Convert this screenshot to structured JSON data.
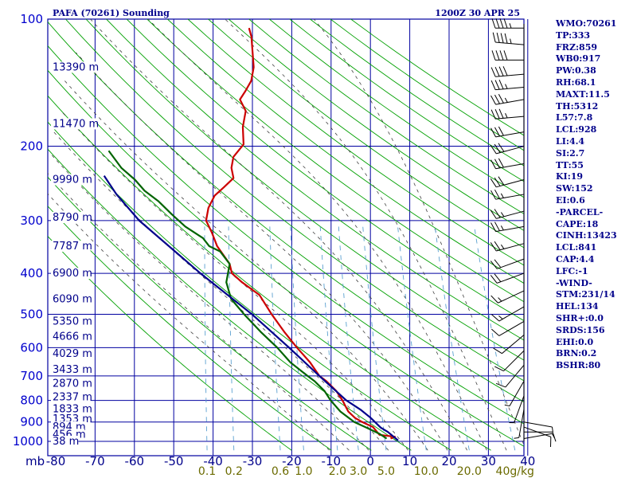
{
  "header": {
    "station": "PAFA (70261) Sounding",
    "time": "1200Z 30 APR 25"
  },
  "colors": {
    "axes": "#0000a0",
    "dry_adiabat": "#00a000",
    "moist_adiabat": "#404040",
    "mixing_ratio": "#5aa0d0",
    "temperature": "#cc0000",
    "dewpoint": "#006400",
    "parcel": "#00008b",
    "wind": "#000000",
    "label": "#00008b"
  },
  "chart_data": {
    "type": "skew-t log-p",
    "pressure_axis": {
      "unit_label": "mb",
      "ticks": [
        "100",
        "200",
        "300",
        "400",
        "500",
        "600",
        "700",
        "800",
        "900",
        "1000"
      ],
      "scale": "log",
      "range": [
        100,
        1050
      ]
    },
    "temperature_axis": {
      "ticks": [
        "-80",
        "-70",
        "-60",
        "-50",
        "-40",
        "-30",
        "-20",
        "-10",
        "0",
        "10",
        "20",
        "30",
        "40"
      ],
      "range": [
        -80,
        40
      ],
      "skewed": true
    },
    "height_labels": [
      {
        "p": 130,
        "label": "13390 m"
      },
      {
        "p": 177,
        "label": "11470 m"
      },
      {
        "p": 240,
        "label": "9990 m"
      },
      {
        "p": 295,
        "label": "8790 m"
      },
      {
        "p": 345,
        "label": "7787 m"
      },
      {
        "p": 400,
        "label": "6900 m"
      },
      {
        "p": 460,
        "label": "6090 m"
      },
      {
        "p": 520,
        "label": "5350 m"
      },
      {
        "p": 565,
        "label": "4666 m"
      },
      {
        "p": 620,
        "label": "4029 m"
      },
      {
        "p": 676,
        "label": "3433 m"
      },
      {
        "p": 730,
        "label": "2870 m"
      },
      {
        "p": 785,
        "label": "2337 m"
      },
      {
        "p": 838,
        "label": "1833 m"
      },
      {
        "p": 885,
        "label": "1353 m"
      },
      {
        "p": 925,
        "label": "894 m"
      },
      {
        "p": 963,
        "label": "456 m"
      },
      {
        "p": 1000,
        "label": "38 m"
      }
    ],
    "mixing_ratio_labels": [
      "0.1",
      "0.2",
      "0.6",
      "1.0",
      "2.0",
      "3.0",
      "5.0",
      "10.0",
      "20.0",
      "40g/kg"
    ],
    "series": [
      {
        "key": "temperature",
        "points": [
          [
            985,
            5
          ],
          [
            975,
            6
          ],
          [
            965,
            2
          ],
          [
            925,
            0
          ],
          [
            900,
            -3
          ],
          [
            880,
            -5
          ],
          [
            850,
            -7
          ],
          [
            800,
            -9
          ],
          [
            760,
            -11
          ],
          [
            720,
            -14
          ],
          [
            700,
            -16
          ],
          [
            650,
            -19
          ],
          [
            600,
            -23
          ],
          [
            550,
            -27
          ],
          [
            500,
            -31
          ],
          [
            450,
            -35
          ],
          [
            420,
            -40
          ],
          [
            400,
            -43
          ],
          [
            380,
            -44
          ],
          [
            345,
            -48
          ],
          [
            320,
            -50
          ],
          [
            300,
            -52
          ],
          [
            280,
            -52
          ],
          [
            262,
            -51
          ],
          [
            250,
            -49
          ],
          [
            238,
            -47
          ],
          [
            225,
            -48
          ],
          [
            212,
            -48
          ],
          [
            198,
            -46
          ],
          [
            180,
            -47
          ],
          [
            165,
            -47
          ],
          [
            155,
            -49
          ],
          [
            148,
            -48
          ],
          [
            140,
            -47
          ],
          [
            130,
            -47
          ],
          [
            110,
            -49
          ],
          [
            105,
            -50
          ]
        ]
      },
      {
        "key": "dewpoint",
        "points": [
          [
            985,
            4
          ],
          [
            960,
            2
          ],
          [
            925,
            -2
          ],
          [
            900,
            -5
          ],
          [
            850,
            -9
          ],
          [
            800,
            -12
          ],
          [
            760,
            -14
          ],
          [
            720,
            -17
          ],
          [
            700,
            -19
          ],
          [
            650,
            -24
          ],
          [
            600,
            -28
          ],
          [
            550,
            -33
          ],
          [
            500,
            -38
          ],
          [
            460,
            -42
          ],
          [
            420,
            -44
          ],
          [
            380,
            -44
          ],
          [
            355,
            -47
          ],
          [
            345,
            -50
          ],
          [
            330,
            -52
          ],
          [
            310,
            -57
          ],
          [
            290,
            -61
          ],
          [
            270,
            -65
          ],
          [
            255,
            -69
          ],
          [
            240,
            -72
          ],
          [
            225,
            -76
          ],
          [
            205,
            -80
          ]
        ]
      },
      {
        "key": "parcel",
        "points": [
          [
            995,
            7
          ],
          [
            950,
            4
          ],
          [
            928,
            2
          ],
          [
            880,
            -1
          ],
          [
            841,
            -4
          ],
          [
            800,
            -8
          ],
          [
            700,
            -16
          ],
          [
            600,
            -25
          ],
          [
            500,
            -36
          ],
          [
            400,
            -51
          ],
          [
            300,
            -69
          ],
          [
            260,
            -76
          ],
          [
            235,
            -80
          ]
        ]
      }
    ],
    "wind_barbs": [
      {
        "p": 105,
        "dir": 270,
        "spd": 45
      },
      {
        "p": 115,
        "dir": 275,
        "spd": 45
      },
      {
        "p": 125,
        "dir": 270,
        "spd": 40
      },
      {
        "p": 135,
        "dir": 265,
        "spd": 40
      },
      {
        "p": 145,
        "dir": 265,
        "spd": 35
      },
      {
        "p": 155,
        "dir": 260,
        "spd": 35
      },
      {
        "p": 170,
        "dir": 265,
        "spd": 35
      },
      {
        "p": 185,
        "dir": 260,
        "spd": 30
      },
      {
        "p": 200,
        "dir": 255,
        "spd": 30
      },
      {
        "p": 220,
        "dir": 260,
        "spd": 30
      },
      {
        "p": 240,
        "dir": 255,
        "spd": 30
      },
      {
        "p": 260,
        "dir": 260,
        "spd": 25
      },
      {
        "p": 285,
        "dir": 255,
        "spd": 25
      },
      {
        "p": 310,
        "dir": 260,
        "spd": 25
      },
      {
        "p": 340,
        "dir": 255,
        "spd": 25
      },
      {
        "p": 370,
        "dir": 250,
        "spd": 20
      },
      {
        "p": 400,
        "dir": 250,
        "spd": 20
      },
      {
        "p": 440,
        "dir": 245,
        "spd": 15
      },
      {
        "p": 480,
        "dir": 240,
        "spd": 15
      },
      {
        "p": 520,
        "dir": 240,
        "spd": 10
      },
      {
        "p": 560,
        "dir": 230,
        "spd": 10
      },
      {
        "p": 610,
        "dir": 225,
        "spd": 10
      },
      {
        "p": 660,
        "dir": 220,
        "spd": 10
      },
      {
        "p": 720,
        "dir": 210,
        "spd": 5
      },
      {
        "p": 780,
        "dir": 200,
        "spd": 5
      },
      {
        "p": 840,
        "dir": 190,
        "spd": 5
      },
      {
        "p": 900,
        "dir": 100,
        "spd": 5
      },
      {
        "p": 925,
        "dir": 110,
        "spd": 10
      },
      {
        "p": 950,
        "dir": 90,
        "spd": 10
      },
      {
        "p": 985,
        "dir": 80,
        "spd": 5
      }
    ]
  },
  "indices": [
    "WMO:70261",
    "TP:333",
    "FRZ:859",
    "WB0:917",
    "PW:0.38",
    "RH:68.1",
    "MAXT:11.5",
    "TH:5312",
    "L57:7.8",
    "LCL:928",
    "LI:4.4",
    "SI:2.7",
    "TT:55",
    "KI:19",
    "SW:152",
    "EI:0.6",
    "-PARCEL-",
    "CAPE:18",
    "CINH:13423",
    "LCL:841",
    "CAP:4.4",
    "LFC:-1",
    "-WIND-",
    "STM:231/14",
    "HEL:134",
    "SHR+:0.0",
    "SRDS:156",
    "EHI:0.0",
    "BRN:0.2",
    "BSHR:80"
  ]
}
